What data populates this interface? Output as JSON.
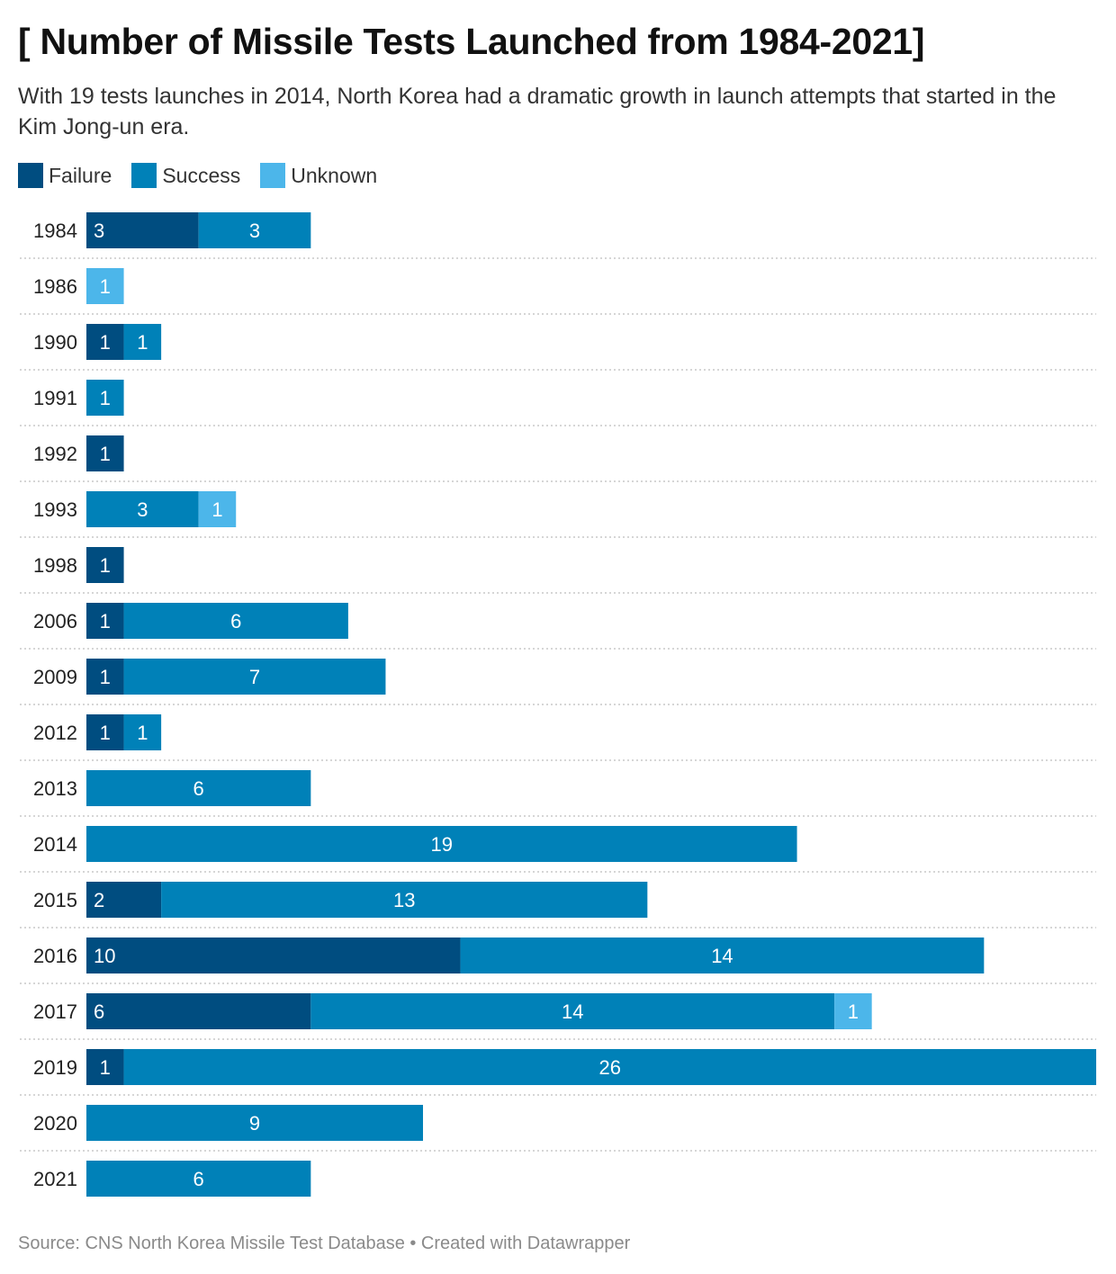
{
  "header": {
    "title": "[ Number of Missile Tests Launched from 1984-2021]",
    "subtitle": "With 19 tests launches in 2014, North Korea had a dramatic growth in launch attempts that started in the Kim Jong-un era."
  },
  "footer": {
    "source": "Source: CNS North Korea Missile Test Database • Created with Datawrapper"
  },
  "colors": {
    "failure": "#004d80",
    "success": "#0081b8",
    "unknown": "#4cb6ea",
    "grid": "#c8c8c8",
    "label_text": "#ffffff",
    "category_text": "#222222"
  },
  "chart_data": {
    "type": "bar",
    "orientation": "horizontal",
    "stacked": true,
    "title": "[ Number of Missile Tests Launched from 1984-2021]",
    "subtitle": "With 19 tests launches in 2014, North Korea had a dramatic growth in launch attempts that started in the Kim Jong-un era.",
    "legend_position": "top-left",
    "xlim": [
      0,
      27
    ],
    "categories": [
      "1984",
      "1986",
      "1990",
      "1991",
      "1992",
      "1993",
      "1998",
      "2006",
      "2009",
      "2012",
      "2013",
      "2014",
      "2015",
      "2016",
      "2017",
      "2019",
      "2020",
      "2021"
    ],
    "series": [
      {
        "name": "Failure",
        "values": [
          3,
          0,
          1,
          0,
          1,
          0,
          1,
          1,
          1,
          1,
          0,
          0,
          2,
          10,
          6,
          1,
          0,
          0
        ]
      },
      {
        "name": "Success",
        "values": [
          3,
          0,
          1,
          1,
          0,
          3,
          0,
          6,
          7,
          1,
          6,
          19,
          13,
          14,
          14,
          26,
          9,
          6
        ]
      },
      {
        "name": "Unknown",
        "values": [
          0,
          1,
          0,
          0,
          0,
          1,
          0,
          0,
          0,
          0,
          0,
          0,
          0,
          0,
          1,
          0,
          0,
          0
        ]
      }
    ]
  }
}
